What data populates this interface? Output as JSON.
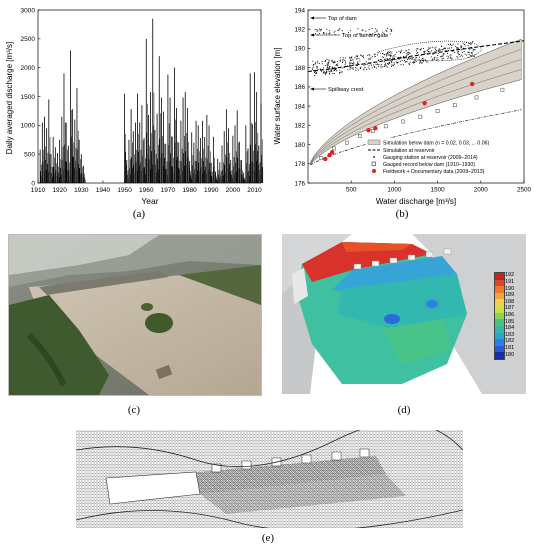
{
  "chart_data": [
    {
      "type": "bar",
      "panel": "a",
      "xlabel": "Year",
      "ylabel": "Daily averaged discharge [m³/s]",
      "xlim": [
        1910,
        2013
      ],
      "ylim": [
        0,
        3000
      ],
      "xticks": [
        "1910",
        "1920",
        "1930",
        "1940",
        "1950",
        "1960",
        "1970",
        "1980",
        "1990",
        "2000",
        "2010"
      ],
      "yticks": [
        "0",
        "500",
        "1000",
        "1500",
        "2000",
        "2500",
        "3000"
      ],
      "x": [
        1911,
        1912,
        1913,
        1914,
        1915,
        1916,
        1917,
        1918,
        1919,
        1920,
        1921,
        1922,
        1923,
        1924,
        1925,
        1926,
        1927,
        1928,
        1929,
        1930,
        1931,
        1950,
        1951,
        1952,
        1953,
        1954,
        1955,
        1956,
        1957,
        1958,
        1959,
        1960,
        1961,
        1962,
        1963,
        1964,
        1965,
        1966,
        1967,
        1968,
        1969,
        1970,
        1971,
        1972,
        1973,
        1974,
        1975,
        1976,
        1977,
        1978,
        1979,
        1980,
        1981,
        1982,
        1983,
        1984,
        1985,
        1986,
        1987,
        1988,
        1989,
        1990,
        1991,
        1992,
        1993,
        1994,
        1995,
        1996,
        1997,
        1998,
        1999,
        2000,
        2001,
        2002,
        2003,
        2004,
        2005,
        2006,
        2007,
        2008,
        2009,
        2010,
        2011,
        2012,
        2013
      ],
      "values": [
        580,
        1050,
        1150,
        950,
        1450,
        500,
        800,
        620,
        520,
        750,
        1150,
        1900,
        1050,
        650,
        2300,
        1280,
        1100,
        1650,
        750,
        500,
        300,
        1550,
        400,
        750,
        1280,
        900,
        1050,
        1550,
        1050,
        1350,
        780,
        2500,
        1180,
        1580,
        2850,
        920,
        1200,
        2200,
        1480,
        1240,
        680,
        1880,
        1480,
        800,
        2000,
        1300,
        700,
        1080,
        1480,
        1580,
        1300,
        380,
        880,
        700,
        1080,
        1000,
        780,
        1080,
        800,
        1180,
        1000,
        350,
        800,
        200,
        420,
        360,
        650,
        900,
        1280,
        950,
        400,
        820,
        1000,
        1260,
        720,
        400,
        180,
        1000,
        600,
        1900,
        1020,
        1920,
        1580,
        650,
        1380
      ]
    },
    {
      "type": "scatter",
      "panel": "b",
      "xlabel": "Water discharge [m³/s]",
      "ylabel": "Water surface elevation [m]",
      "xlim": [
        0,
        2500
      ],
      "ylim": [
        176,
        194
      ],
      "xticks": [
        "500",
        "1000",
        "1500",
        "2000",
        "2500"
      ],
      "yticks": [
        "176",
        "178",
        "180",
        "182",
        "184",
        "186",
        "188",
        "190",
        "192",
        "194"
      ],
      "annotations": [
        "Top of dam",
        "Top of tainter gate",
        "Spillway crest"
      ],
      "legend": [
        "Simulation below dam (n = 0.02, 0.03, ... 0.06)",
        "Simulation at reservoir",
        "Gauging station at reservoir (2009–2014)",
        "Gauged record below dam (1910–1930)",
        "Fieldwork + Documentary data (2009–2013)"
      ],
      "series": [
        {
          "name": "Simulation at reservoir",
          "x": [
            0,
            200,
            500,
            800,
            1200,
            1600,
            2000,
            2500
          ],
          "y": [
            187.6,
            187.8,
            188.2,
            188.6,
            189.2,
            189.7,
            190.2,
            190.8
          ]
        },
        {
          "name": "Gauged record below dam (1910–1930)",
          "x": [
            150,
            300,
            450,
            600,
            750,
            900,
            1100,
            1300,
            1500,
            1700,
            1950,
            2250
          ],
          "y": [
            178.6,
            179.6,
            180.2,
            180.9,
            181.4,
            181.9,
            182.4,
            182.9,
            183.5,
            184.1,
            184.9,
            185.7
          ]
        },
        {
          "name": "Fieldwork + Documentary data (2009–2013)",
          "x": [
            200,
            250,
            280,
            700,
            780,
            1350,
            1900
          ],
          "y": [
            178.5,
            178.9,
            179.2,
            181.5,
            181.7,
            184.3,
            186.3
          ]
        },
        {
          "name": "Gauging station at reservoir (2009–2014)",
          "x": [
            100,
            150,
            200,
            250,
            300,
            400,
            500,
            650,
            800,
            1000,
            1200,
            1500,
            1800,
            2050
          ],
          "y": [
            192,
            191.5,
            191.9,
            187.5,
            188.2,
            188,
            188.6,
            188.3,
            188.9,
            189.3,
            189.6,
            190.1,
            190.3,
            190.2
          ]
        }
      ],
      "envelope_n": [
        0.02,
        0.03,
        0.04,
        0.05,
        0.06
      ]
    }
  ],
  "captions": {
    "a": "(a)",
    "b": "(b)",
    "c": "(c)",
    "d": "(d)",
    "e": "(e)"
  },
  "colorbar": {
    "ticks": [
      "192",
      "191",
      "190",
      "189",
      "188",
      "187",
      "186",
      "185",
      "184",
      "183",
      "182",
      "181",
      "180"
    ],
    "colors": [
      "#c0281c",
      "#e0452a",
      "#f0782c",
      "#f6a636",
      "#f2d04a",
      "#c9e04a",
      "#86d45a",
      "#4cc27a",
      "#36b6a6",
      "#2aa4d4",
      "#2a80e4",
      "#2a58d8",
      "#1b2ea8"
    ]
  }
}
